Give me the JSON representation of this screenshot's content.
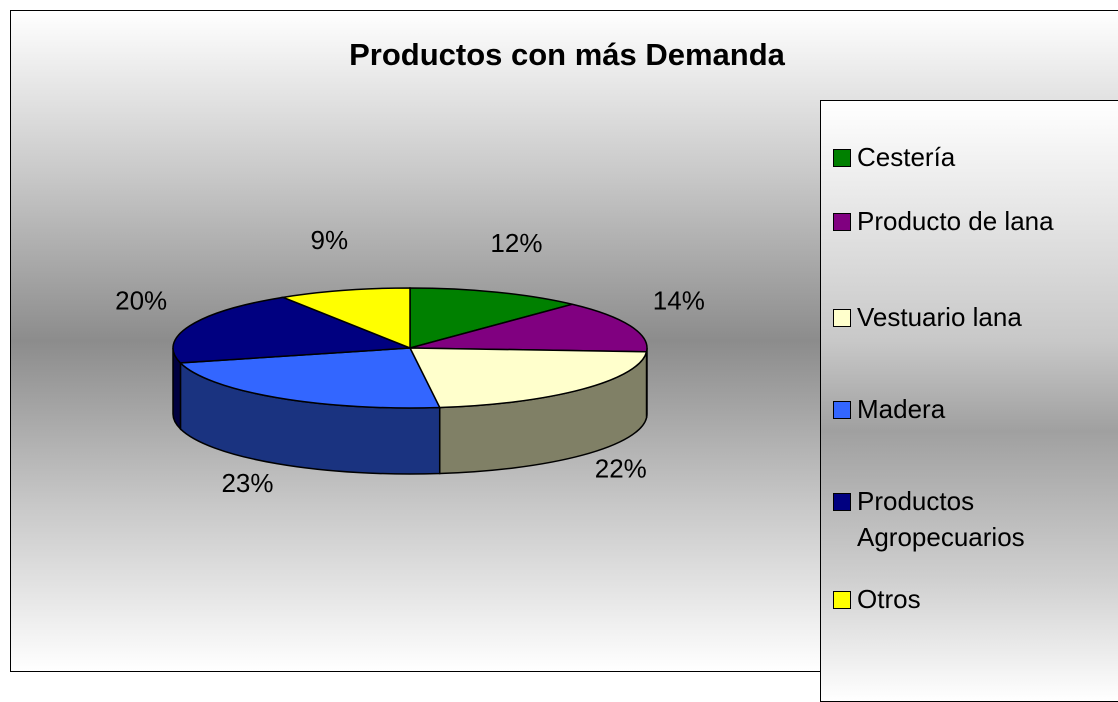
{
  "chart_data": {
    "type": "pie",
    "title": "Productos con más Demanda",
    "categories": [
      "Cestería",
      "Producto de lana",
      "Vestuario lana",
      "Madera",
      "Productos Agropecuarios",
      "Otros"
    ],
    "values": [
      12,
      14,
      22,
      23,
      20,
      9
    ],
    "value_labels": [
      "12%",
      "14%",
      "22%",
      "23%",
      "20%",
      "9%"
    ],
    "colors": [
      "#008000",
      "#800080",
      "#ffffcc",
      "#3366ff",
      "#000080",
      "#ffff00"
    ]
  }
}
